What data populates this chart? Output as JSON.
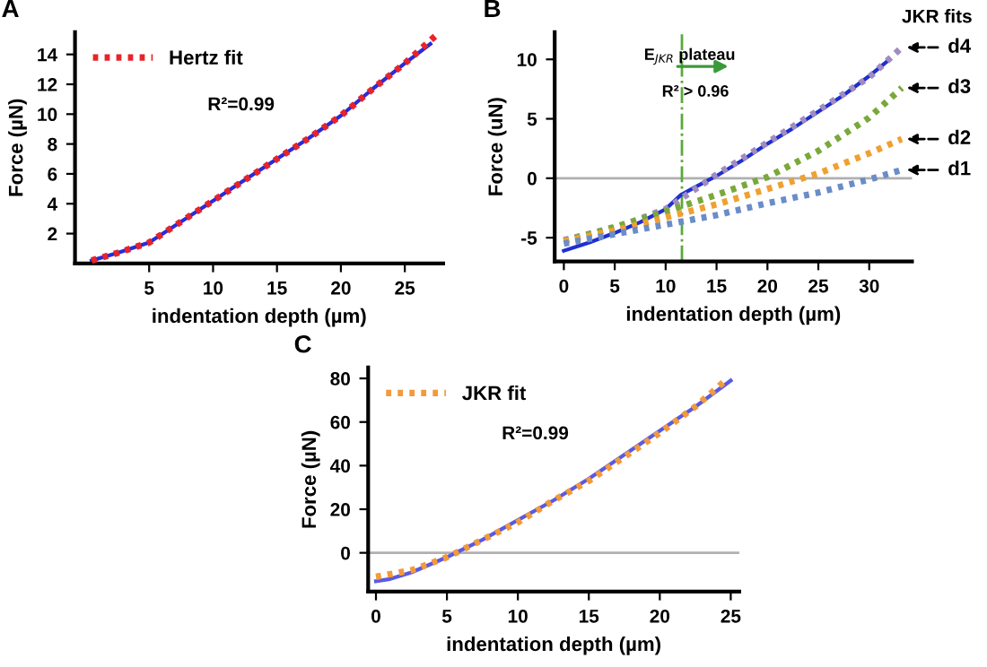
{
  "chart_data": [
    {
      "type": "line",
      "title": "A",
      "xlabel": "indentation depth (µm)",
      "ylabel": "Force (µN)",
      "xlim": [
        -0.8,
        28
      ],
      "ylim": [
        0,
        15.5
      ],
      "xticks": [
        5,
        10,
        15,
        20,
        25
      ],
      "yticks": [
        2,
        4,
        6,
        8,
        10,
        12,
        14
      ],
      "legend": "top left",
      "grid": false,
      "annotations": [
        "R²=0.99"
      ],
      "series": [
        {
          "color": "#2b2bd6",
          "line_style": "solid",
          "x": [
            0.5,
            2.5,
            5,
            7.5,
            10,
            12.5,
            15,
            17.5,
            20,
            22.5,
            25,
            27
          ],
          "values": [
            0.2,
            0.7,
            1.4,
            2.8,
            4.2,
            5.6,
            7.0,
            8.4,
            9.9,
            11.7,
            13.4,
            14.7
          ]
        },
        {
          "name": "Hertz fit",
          "color": "#e8242a",
          "line_style": "dotted",
          "x": [
            0.5,
            2.5,
            5,
            7.5,
            10,
            12.5,
            15,
            17.5,
            20,
            22.5,
            25,
            27.6
          ],
          "values": [
            0.2,
            0.7,
            1.4,
            2.8,
            4.2,
            5.6,
            7.0,
            8.4,
            9.9,
            11.7,
            13.4,
            15.4
          ]
        }
      ]
    },
    {
      "type": "line",
      "title": "B",
      "xlabel": "indentation depth (µm)",
      "ylabel": "Force (uN)",
      "xlim": [
        -0.9,
        34.2
      ],
      "ylim": [
        -7,
        12.3
      ],
      "xticks": [
        0,
        5,
        10,
        15,
        20,
        25,
        30
      ],
      "yticks": [
        -5,
        0,
        5,
        10
      ],
      "legend": false,
      "grid": false,
      "annotations": [
        "JKR fits",
        "E$_{JKR}$ plateau",
        "R² > 0.96"
      ],
      "ref_lines": [
        {
          "axis": "y",
          "value": 0,
          "color": "#b0b0b0",
          "line_style": "solid"
        },
        {
          "axis": "x",
          "value": 11.6,
          "color": "#5aaa3a",
          "line_style": "dashdot"
        }
      ],
      "series": [
        {
          "color": "#1f2fd0",
          "line_style": "solid",
          "x": [
            0,
            2.5,
            5,
            7.5,
            10,
            11.5,
            13,
            15,
            17.5,
            20,
            22.5,
            25,
            27.5,
            30,
            32
          ],
          "values": [
            -6.1,
            -5.4,
            -4.6,
            -3.7,
            -2.6,
            -1.4,
            -0.7,
            0.2,
            1.5,
            2.9,
            4.2,
            5.6,
            7.0,
            8.6,
            10.0
          ]
        },
        {
          "name": "d4",
          "color": "#a08cc0",
          "line_style": "dotted",
          "x": [
            0,
            5,
            10,
            15,
            20,
            25,
            30,
            33.2
          ],
          "values": [
            -5.2,
            -4.2,
            -2.6,
            0.3,
            3.0,
            5.7,
            8.5,
            11.0
          ]
        },
        {
          "name": "d3",
          "color": "#7aa83a",
          "line_style": "dotted",
          "x": [
            0,
            5,
            10,
            15,
            20,
            25,
            30,
            33.2
          ],
          "values": [
            -5.3,
            -4.1,
            -2.8,
            -1.4,
            0.1,
            2.3,
            5.1,
            7.6
          ]
        },
        {
          "name": "d2",
          "color": "#f0a030",
          "line_style": "dotted",
          "x": [
            0,
            5,
            10,
            15,
            20,
            25,
            30,
            33.2
          ],
          "values": [
            -5.3,
            -4.4,
            -3.3,
            -2.2,
            -0.9,
            0.4,
            2.1,
            3.3
          ]
        },
        {
          "name": "d1",
          "color": "#6a8cc8",
          "line_style": "dotted",
          "x": [
            0,
            5,
            10,
            15,
            20,
            25,
            30,
            33.2
          ],
          "values": [
            -5.5,
            -4.7,
            -3.9,
            -3.1,
            -2.1,
            -1.2,
            -0.1,
            0.7
          ]
        }
      ]
    },
    {
      "type": "line",
      "title": "C",
      "xlabel": "indentation depth (µm)",
      "ylabel": "Force (µN)",
      "xlim": [
        -0.55,
        25.6
      ],
      "ylim": [
        -17.8,
        85
      ],
      "xticks": [
        0,
        5,
        10,
        15,
        20,
        25
      ],
      "yticks": [
        0,
        20,
        40,
        60,
        80
      ],
      "legend": "top left",
      "grid": false,
      "annotations": [
        "R²=0.99"
      ],
      "ref_lines": [
        {
          "axis": "y",
          "value": 0,
          "color": "#b0b0b0",
          "line_style": "solid"
        }
      ],
      "series": [
        {
          "color": "#5a5ae0",
          "line_style": "solid",
          "x": [
            0,
            1,
            2.5,
            5,
            7.5,
            10,
            12.5,
            15,
            17.5,
            20,
            22.5,
            25
          ],
          "values": [
            -13,
            -12,
            -9,
            -2,
            6,
            15,
            24,
            34,
            45,
            56,
            67,
            79
          ]
        },
        {
          "name": "JKR fit",
          "color": "#f39a3a",
          "line_style": "dotted",
          "x": [
            0,
            2.5,
            5,
            7.5,
            10,
            12.5,
            15,
            17.5,
            20,
            22.5,
            24.8
          ],
          "values": [
            -11,
            -8,
            -2,
            6,
            14,
            24,
            33,
            44,
            55,
            67,
            80
          ]
        }
      ]
    }
  ]
}
